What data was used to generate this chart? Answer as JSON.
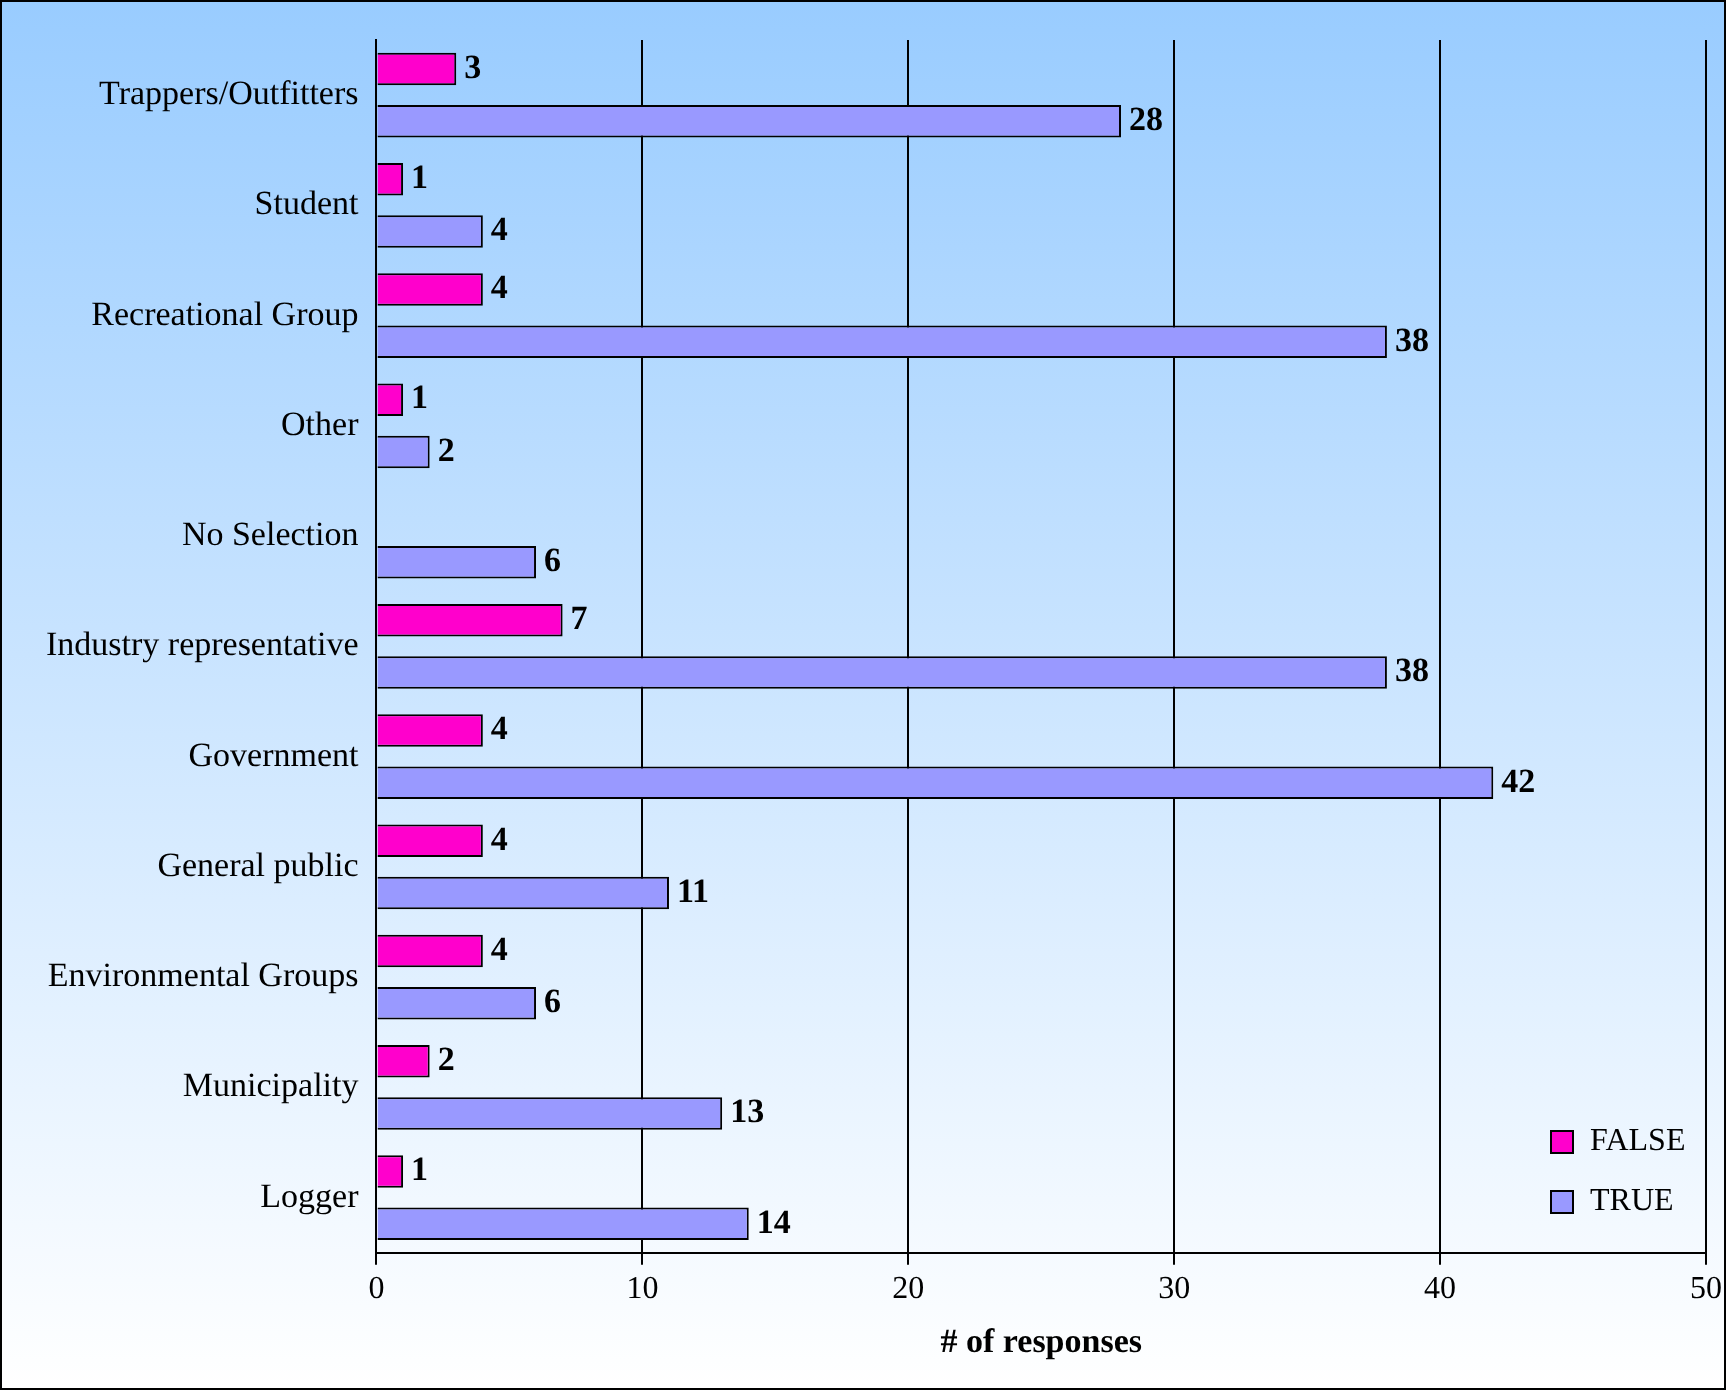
{
  "chart_data": {
    "type": "bar",
    "orientation": "horizontal",
    "xlabel": "# of responses",
    "categories": [
      "Trappers/Outfitters",
      "Student",
      "Recreational Group",
      "Other",
      "No Selection",
      "Industry representative",
      "Government",
      "General public",
      "Environmental Groups",
      "Municipality",
      "Logger"
    ],
    "series": [
      {
        "name": "FALSE",
        "color": "#ff00cc",
        "values": [
          3,
          1,
          4,
          1,
          null,
          7,
          4,
          4,
          4,
          2,
          1
        ]
      },
      {
        "name": "TRUE",
        "color": "#9999ff",
        "values": [
          28,
          4,
          38,
          2,
          6,
          38,
          42,
          11,
          6,
          13,
          14
        ]
      }
    ],
    "xlim": [
      0,
      50
    ],
    "xticks": [
      0,
      10,
      20,
      30,
      40,
      50
    ],
    "grid": "x",
    "legend": "bottom right",
    "data_labels": true
  }
}
